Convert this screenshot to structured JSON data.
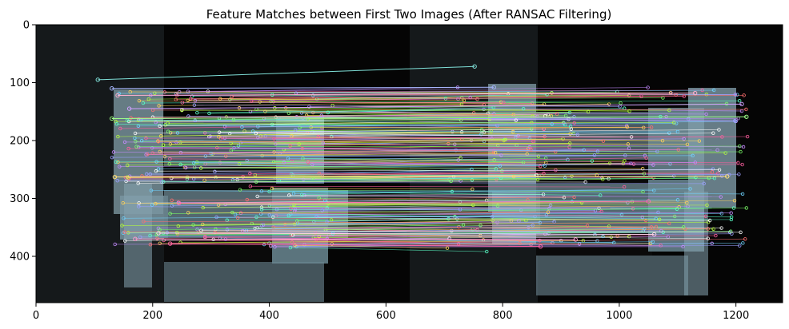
{
  "chart_data": {
    "type": "image",
    "title": "Feature Matches between First Two Images (After RANSAC Filtering)",
    "xlabel": "",
    "ylabel": "",
    "xlim": [
      0,
      1280
    ],
    "ylim": [
      480,
      0
    ],
    "image_width": 1280,
    "image_height": 480,
    "x_ticks": [
      0,
      200,
      400,
      600,
      800,
      1000,
      1200
    ],
    "y_ticks": [
      0,
      100,
      200,
      300,
      400
    ],
    "grid": false,
    "legend": "none",
    "colors": {
      "background": "#050505",
      "specimen": "#6f8790",
      "specimen_highlight": "#b7d3e0",
      "dark_slot": "#0a0a0a",
      "glow": "#3a4448",
      "match_palette": [
        "#ff5fa0",
        "#7dff6a",
        "#6fd3ff",
        "#c58bff",
        "#ffd35a",
        "#ff7070",
        "#5affc8",
        "#ffffff",
        "#9aa0ff",
        "#b6ff3a"
      ]
    },
    "notable_matches": [
      {
        "x1": 106,
        "y1": 95,
        "x2": 752,
        "y2": 72
      },
      {
        "x1": 130,
        "y1": 110,
        "x2": 785,
        "y2": 108
      },
      {
        "x1": 140,
        "y1": 122,
        "x2": 1130,
        "y2": 118
      },
      {
        "x1": 160,
        "y1": 145,
        "x2": 1210,
        "y2": 137
      },
      {
        "x1": 130,
        "y1": 162,
        "x2": 1218,
        "y2": 159
      },
      {
        "x1": 135,
        "y1": 263,
        "x2": 1185,
        "y2": 262
      },
      {
        "x1": 245,
        "y1": 308,
        "x2": 1050,
        "y2": 305
      },
      {
        "x1": 170,
        "y1": 370,
        "x2": 925,
        "y2": 371
      },
      {
        "x1": 230,
        "y1": 378,
        "x2": 865,
        "y2": 383
      },
      {
        "x1": 210,
        "y1": 360,
        "x2": 1060,
        "y2": 362
      }
    ]
  }
}
